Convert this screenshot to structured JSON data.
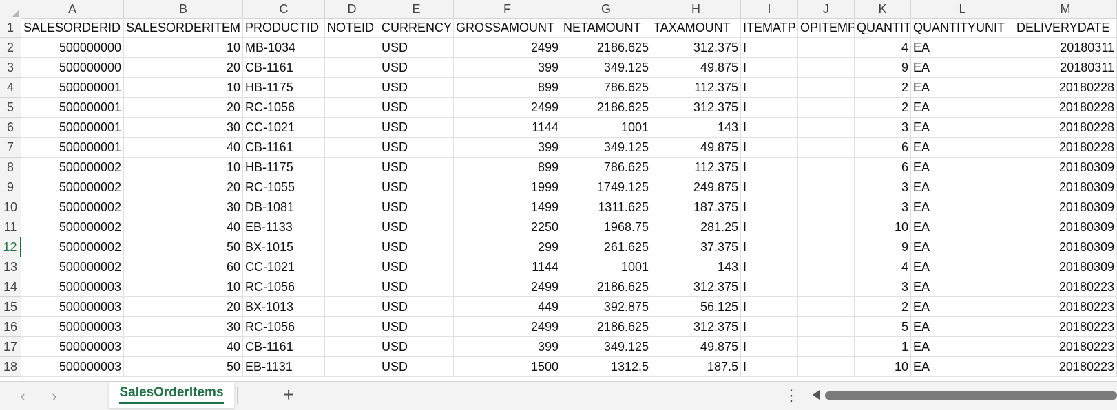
{
  "columns": [
    {
      "letter": "A",
      "header": "SALESORDERID",
      "align": "num"
    },
    {
      "letter": "B",
      "header": "SALESORDERITEM",
      "align": "num"
    },
    {
      "letter": "C",
      "header": "PRODUCTID",
      "align": "txt"
    },
    {
      "letter": "D",
      "header": "NOTEID",
      "align": "txt"
    },
    {
      "letter": "E",
      "header": "CURRENCY",
      "align": "txt"
    },
    {
      "letter": "F",
      "header": "GROSSAMOUNT",
      "align": "num"
    },
    {
      "letter": "G",
      "header": "NETAMOUNT",
      "align": "num"
    },
    {
      "letter": "H",
      "header": "TAXAMOUNT",
      "align": "num"
    },
    {
      "letter": "I",
      "header": "ITEMATPSTATUS",
      "align": "txt"
    },
    {
      "letter": "J",
      "header": "OPITEMPOS",
      "align": "txt"
    },
    {
      "letter": "K",
      "header": "QUANTITY",
      "align": "num"
    },
    {
      "letter": "L",
      "header": "QUANTITYUNIT",
      "align": "txt"
    },
    {
      "letter": "M",
      "header": "DELIVERYDATE",
      "align": "num"
    }
  ],
  "rows": [
    [
      "500000000",
      "10",
      "MB-1034",
      "",
      "USD",
      "2499",
      "2186.625",
      "312.375",
      "I",
      "",
      "4",
      "EA",
      "20180311"
    ],
    [
      "500000000",
      "20",
      "CB-1161",
      "",
      "USD",
      "399",
      "349.125",
      "49.875",
      "I",
      "",
      "9",
      "EA",
      "20180311"
    ],
    [
      "500000001",
      "10",
      "HB-1175",
      "",
      "USD",
      "899",
      "786.625",
      "112.375",
      "I",
      "",
      "2",
      "EA",
      "20180228"
    ],
    [
      "500000001",
      "20",
      "RC-1056",
      "",
      "USD",
      "2499",
      "2186.625",
      "312.375",
      "I",
      "",
      "2",
      "EA",
      "20180228"
    ],
    [
      "500000001",
      "30",
      "CC-1021",
      "",
      "USD",
      "1144",
      "1001",
      "143",
      "I",
      "",
      "3",
      "EA",
      "20180228"
    ],
    [
      "500000001",
      "40",
      "CB-1161",
      "",
      "USD",
      "399",
      "349.125",
      "49.875",
      "I",
      "",
      "6",
      "EA",
      "20180228"
    ],
    [
      "500000002",
      "10",
      "HB-1175",
      "",
      "USD",
      "899",
      "786.625",
      "112.375",
      "I",
      "",
      "6",
      "EA",
      "20180309"
    ],
    [
      "500000002",
      "20",
      "RC-1055",
      "",
      "USD",
      "1999",
      "1749.125",
      "249.875",
      "I",
      "",
      "3",
      "EA",
      "20180309"
    ],
    [
      "500000002",
      "30",
      "DB-1081",
      "",
      "USD",
      "1499",
      "1311.625",
      "187.375",
      "I",
      "",
      "3",
      "EA",
      "20180309"
    ],
    [
      "500000002",
      "40",
      "EB-1133",
      "",
      "USD",
      "2250",
      "1968.75",
      "281.25",
      "I",
      "",
      "10",
      "EA",
      "20180309"
    ],
    [
      "500000002",
      "50",
      "BX-1015",
      "",
      "USD",
      "299",
      "261.625",
      "37.375",
      "I",
      "",
      "9",
      "EA",
      "20180309"
    ],
    [
      "500000002",
      "60",
      "CC-1021",
      "",
      "USD",
      "1144",
      "1001",
      "143",
      "I",
      "",
      "4",
      "EA",
      "20180309"
    ],
    [
      "500000003",
      "10",
      "RC-1056",
      "",
      "USD",
      "2499",
      "2186.625",
      "312.375",
      "I",
      "",
      "3",
      "EA",
      "20180223"
    ],
    [
      "500000003",
      "20",
      "BX-1013",
      "",
      "USD",
      "449",
      "392.875",
      "56.125",
      "I",
      "",
      "2",
      "EA",
      "20180223"
    ],
    [
      "500000003",
      "30",
      "RC-1056",
      "",
      "USD",
      "2499",
      "2186.625",
      "312.375",
      "I",
      "",
      "5",
      "EA",
      "20180223"
    ],
    [
      "500000003",
      "40",
      "CB-1161",
      "",
      "USD",
      "399",
      "349.125",
      "49.875",
      "I",
      "",
      "1",
      "EA",
      "20180223"
    ],
    [
      "500000003",
      "50",
      "EB-1131",
      "",
      "USD",
      "1500",
      "1312.5",
      "187.5",
      "I",
      "",
      "10",
      "EA",
      "20180223"
    ]
  ],
  "selected_row": 12,
  "sheet_tab": "SalesOrderItems",
  "nav": {
    "prev": "‹",
    "next": "›",
    "add": "+",
    "more": "⋮"
  },
  "colors": {
    "accent": "#217346",
    "header_bg": "#f3f3f3",
    "grid_line": "#e1e1e1"
  }
}
